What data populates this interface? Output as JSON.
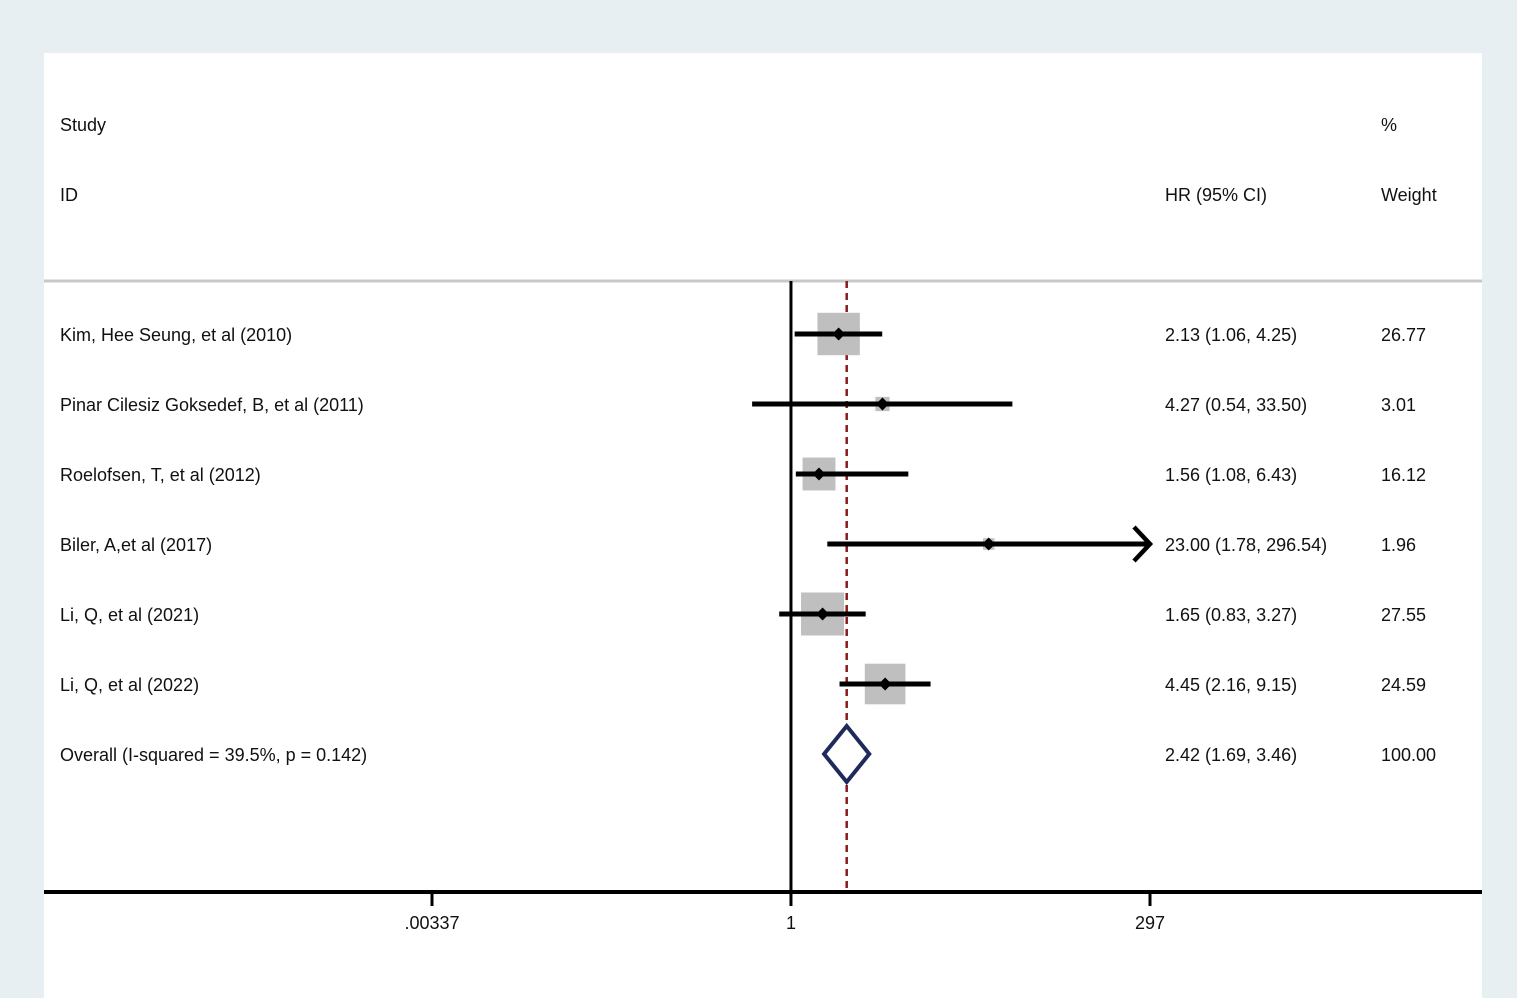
{
  "chart_data": {
    "type": "forest",
    "title": "",
    "xlabel": "",
    "ylabel": "",
    "x_scale": "log",
    "xlim": [
      0.00337,
      297
    ],
    "x_ticks": [
      {
        "value": 0.00337,
        "label": ".00337"
      },
      {
        "value": 1,
        "label": "1"
      },
      {
        "value": 297,
        "label": "297"
      }
    ],
    "reference_line": 1,
    "overall_line": 2.42,
    "headers": {
      "study_top": "Study",
      "study_bottom": "ID",
      "hr": "HR (95% CI)",
      "weight_top": "%",
      "weight_bottom": "Weight"
    },
    "studies": [
      {
        "label": "Kim, Hee Seung, et al (2010)",
        "hr": 2.13,
        "lower": 1.06,
        "upper": 4.25,
        "ci_text": "2.13 (1.06, 4.25)",
        "weight": 26.77,
        "weight_text": "26.77"
      },
      {
        "label": "Pinar Cilesiz Goksedef, B, et al (2011)",
        "hr": 4.27,
        "lower": 0.54,
        "upper": 33.5,
        "ci_text": "4.27 (0.54, 33.50)",
        "weight": 3.01,
        "weight_text": "3.01"
      },
      {
        "label": "Roelofsen, T, et al (2012)",
        "hr": 1.56,
        "lower": 1.08,
        "upper": 6.43,
        "ci_text": "1.56 (1.08, 6.43)",
        "weight": 16.12,
        "weight_text": "16.12"
      },
      {
        "label": "Biler, A,et al  (2017)",
        "hr": 23.0,
        "lower": 1.78,
        "upper": 296.54,
        "ci_text": "23.00 (1.78, 296.54)",
        "weight": 1.96,
        "weight_text": "1.96"
      },
      {
        "label": "Li, Q, et al (2021)",
        "hr": 1.65,
        "lower": 0.83,
        "upper": 3.27,
        "ci_text": "1.65 (0.83, 3.27)",
        "weight": 27.55,
        "weight_text": "27.55"
      },
      {
        "label": "Li, Q, et al (2022)",
        "hr": 4.45,
        "lower": 2.16,
        "upper": 9.15,
        "ci_text": "4.45 (2.16, 9.15)",
        "weight": 24.59,
        "weight_text": "24.59"
      }
    ],
    "overall": {
      "label": "Overall  (I-squared = 39.5%, p = 0.142)",
      "hr": 2.42,
      "lower": 1.69,
      "upper": 3.46,
      "ci_text": "2.42 (1.69, 3.46)",
      "weight": 100.0,
      "weight_text": "100.00"
    },
    "colors": {
      "background": "#e8eff2",
      "panel": "#ffffff",
      "box": "#bfbfbf",
      "line": "#000000",
      "overall_line": "#8b1a1a",
      "diamond": "#1f2a5c",
      "separator": "#c8c8c8"
    }
  }
}
